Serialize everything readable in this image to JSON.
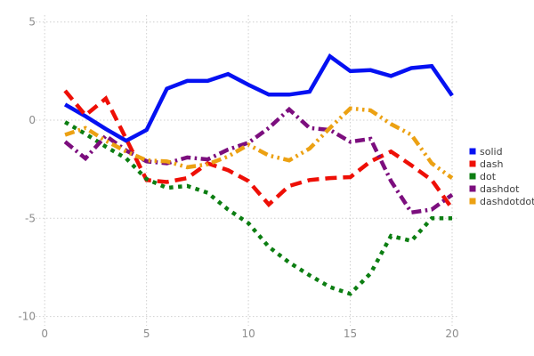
{
  "chart_data": {
    "type": "line",
    "title": "",
    "xlabel": "",
    "ylabel": "",
    "grid": "dotted-lightgray",
    "legend_position": "right-middle",
    "x_ticks": [
      0,
      5,
      10,
      15,
      20
    ],
    "y_ticks": [
      5,
      0,
      -5,
      -10
    ],
    "xlim": [
      -0.5,
      21
    ],
    "ylim": [
      -10.9,
      5.4
    ],
    "x": [
      1,
      2,
      3,
      4,
      5,
      6,
      7,
      8,
      9,
      10,
      11,
      12,
      13,
      14,
      15,
      16,
      17,
      18,
      19,
      20
    ],
    "series": [
      {
        "name": "solid",
        "color": "#0511f2",
        "dash": "solid",
        "values": [
          0.8,
          0.2,
          -0.45,
          -1.05,
          -0.5,
          1.6,
          2.0,
          2.0,
          2.35,
          1.8,
          1.3,
          1.3,
          1.45,
          3.25,
          2.5,
          2.55,
          2.25,
          2.65,
          2.75,
          1.25
        ]
      },
      {
        "name": "dash",
        "color": "#ee0f06",
        "dash": "dash",
        "values": [
          1.5,
          0.25,
          1.1,
          -0.95,
          -3.05,
          -3.15,
          -2.95,
          -2.2,
          -2.55,
          -3.1,
          -4.3,
          -3.35,
          -3.05,
          -2.95,
          -2.9,
          -2.1,
          -1.6,
          -2.3,
          -3.05,
          -4.5
        ]
      },
      {
        "name": "dot",
        "color": "#0c7e12",
        "dash": "dot",
        "values": [
          -0.1,
          -0.7,
          -1.35,
          -1.95,
          -3.0,
          -3.45,
          -3.35,
          -3.7,
          -4.55,
          -5.25,
          -6.45,
          -7.25,
          -7.9,
          -8.5,
          -8.85,
          -7.8,
          -5.9,
          -6.15,
          -5.0,
          -5.0
        ]
      },
      {
        "name": "dashdot",
        "color": "#7c0e7e",
        "dash": "dashdot",
        "values": [
          -1.1,
          -1.95,
          -0.8,
          -1.55,
          -2.1,
          -2.2,
          -1.9,
          -2.0,
          -1.5,
          -1.15,
          -0.4,
          0.55,
          -0.4,
          -0.5,
          -1.1,
          -0.95,
          -3.1,
          -4.7,
          -4.55,
          -3.8
        ]
      },
      {
        "name": "dashdotdot",
        "color": "#eca113",
        "dash": "dashdotdot",
        "values": [
          -0.75,
          -0.4,
          -1.05,
          -1.6,
          -2.05,
          -2.1,
          -2.4,
          -2.25,
          -1.85,
          -1.25,
          -1.8,
          -2.05,
          -1.45,
          -0.4,
          0.6,
          0.5,
          -0.2,
          -0.75,
          -2.2,
          -2.95
        ]
      }
    ]
  },
  "legend": {
    "items": [
      "solid",
      "dash",
      "dot",
      "dashdot",
      "dashdotdot"
    ]
  },
  "style": {
    "grid_color": "#cfcfcf",
    "tick_label_color": "#8c8c8c",
    "legend_text_color": "#3d3d3d",
    "background": "#ffffff"
  }
}
